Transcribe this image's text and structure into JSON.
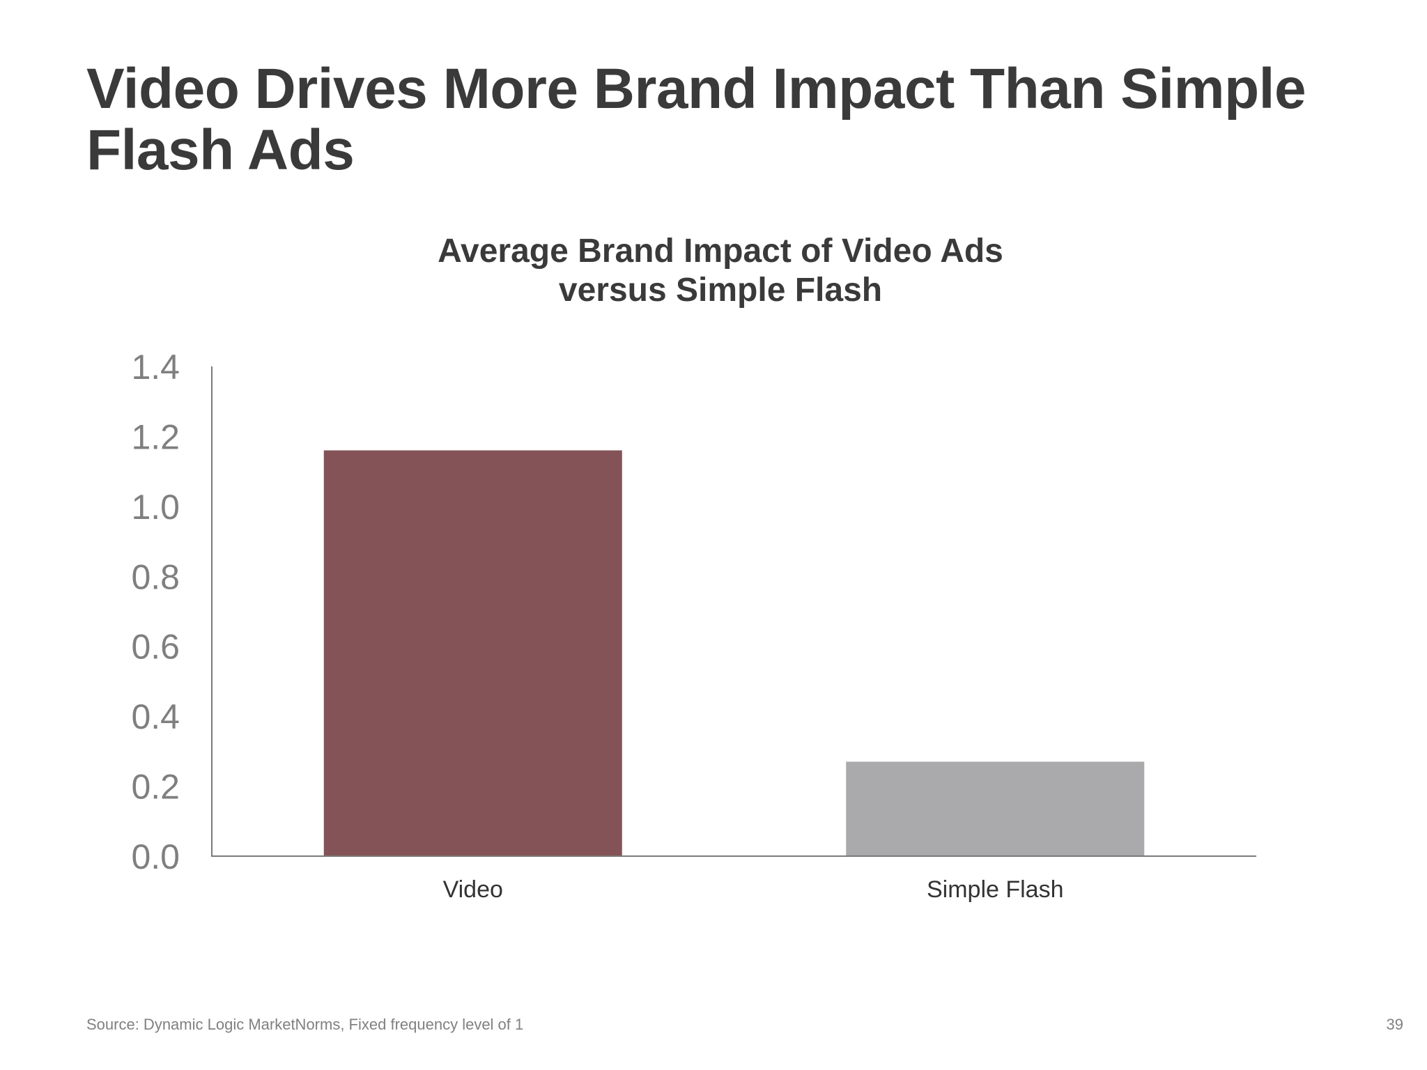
{
  "slide": {
    "title": "Video Drives More Brand Impact Than Simple Flash Ads",
    "source": "Source: Dynamic Logic MarketNorms, Fixed frequency level of 1",
    "page_number": "39"
  },
  "chart_data": {
    "type": "bar",
    "title_lines": [
      "Average Brand Impact of Video Ads",
      "versus Simple Flash"
    ],
    "categories": [
      "Video",
      "Simple Flash"
    ],
    "values": [
      1.16,
      0.27
    ],
    "bar_colors": [
      "#845357",
      "#aaa9ab"
    ],
    "ylim": [
      0,
      1.4
    ],
    "y_ticks": [
      "0.0",
      "0.2",
      "0.4",
      "0.6",
      "0.8",
      "1.0",
      "1.2",
      "1.4"
    ],
    "xlabel": "",
    "ylabel": "",
    "grid": false,
    "legend": "none"
  }
}
